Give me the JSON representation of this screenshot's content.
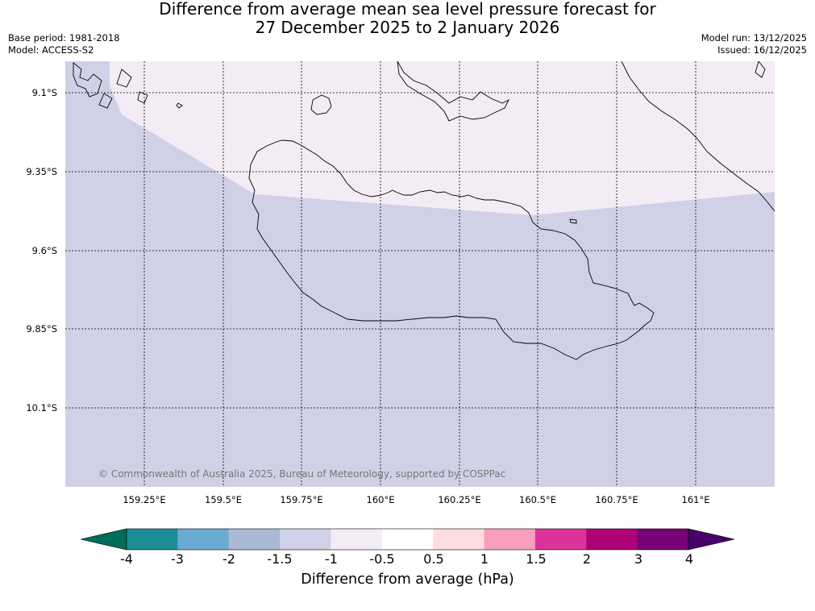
{
  "title": {
    "line1": "Difference from average mean sea level pressure forecast for",
    "line2": "27 December 2025 to 2 January 2026"
  },
  "meta": {
    "base_period": "Base period: 1981-2018",
    "model": "Model: ACCESS-S2",
    "model_run": "Model run: 13/12/2025",
    "issued": "Issued: 16/12/2025"
  },
  "map": {
    "lat_labels": [
      "9.1°S",
      "9.35°S",
      "9.6°S",
      "9.85°S",
      "10.1°S"
    ],
    "lon_labels": [
      "159.25°E",
      "159.5°E",
      "159.75°E",
      "160°E",
      "160.25°E",
      "160.5°E",
      "160.75°E",
      "161°E"
    ],
    "regions": [
      {
        "category": "-1.5 to -1",
        "color": "#d0d1e6"
      },
      {
        "category": "-1 to -0.5",
        "color": "#f3ecf5"
      }
    ],
    "copyright": "© Commonwealth of Australia 2025, Bureau of Meteorology, supported by COSPPac"
  },
  "colorbar": {
    "ticks": [
      "-4",
      "-3",
      "-2",
      "-1.5",
      "-1",
      "-0.5",
      "0.5",
      "1",
      "1.5",
      "2",
      "3",
      "4"
    ],
    "colors": [
      "#1b8e95",
      "#6aaad3",
      "#a9b9d6",
      "#d0d1e6",
      "#f3ecf5",
      "#ffffff",
      "#ffdddd",
      "#f79fbd",
      "#dc3299",
      "#ad0176",
      "#790075"
    ],
    "under_color": "#016c59",
    "over_color": "#49006a",
    "label": "Difference from average (hPa)"
  }
}
